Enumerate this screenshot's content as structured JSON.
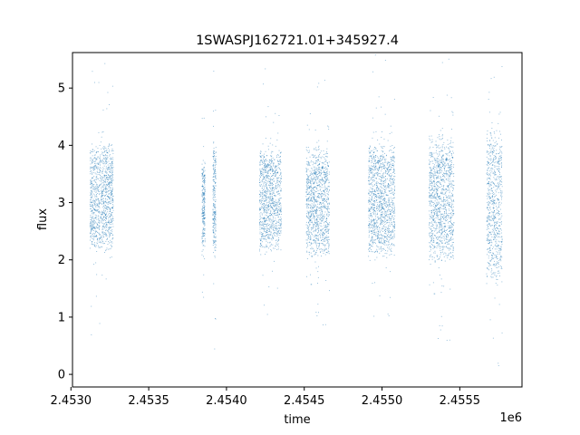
{
  "chart_data": {
    "type": "scatter",
    "title": "1SWASPJ162721.01+345927.4",
    "xlabel": "time",
    "ylabel": "flux",
    "x_offset_label": "1e6",
    "xlim": [
      2.45301,
      2.4559
    ],
    "ylim": [
      -0.22,
      5.62
    ],
    "xticks": [
      2.453,
      2.4535,
      2.454,
      2.4545,
      2.455,
      2.4555
    ],
    "xtick_labels": [
      "2.4530",
      "2.4535",
      "2.4540",
      "2.4545",
      "2.4550",
      "2.4555"
    ],
    "yticks": [
      0,
      1,
      2,
      3,
      4,
      5
    ],
    "ytick_labels": [
      "0",
      "1",
      "2",
      "3",
      "4",
      "5"
    ],
    "grid": false,
    "point_color": "#1f77b4",
    "series": [
      {
        "seasons": [
          {
            "x_start": 2.45312,
            "x_end": 2.45327,
            "flux_low": 2.1,
            "flux_high": 4.1
          },
          {
            "x_start": 2.45384,
            "x_end": 2.45386,
            "flux_low": 2.2,
            "flux_high": 3.8
          },
          {
            "x_start": 2.45391,
            "x_end": 2.45393,
            "flux_low": 2.0,
            "flux_high": 4.2
          },
          {
            "x_start": 2.45421,
            "x_end": 2.45435,
            "flux_low": 2.1,
            "flux_high": 4.0
          },
          {
            "x_start": 2.45451,
            "x_end": 2.45466,
            "flux_low": 2.0,
            "flux_high": 4.0
          },
          {
            "x_start": 2.45491,
            "x_end": 2.45508,
            "flux_low": 2.0,
            "flux_high": 4.1
          },
          {
            "x_start": 2.4553,
            "x_end": 2.45546,
            "flux_low": 1.9,
            "flux_high": 4.2
          },
          {
            "x_start": 2.45567,
            "x_end": 2.45577,
            "flux_low": 1.5,
            "flux_high": 4.4
          }
        ]
      }
    ]
  }
}
